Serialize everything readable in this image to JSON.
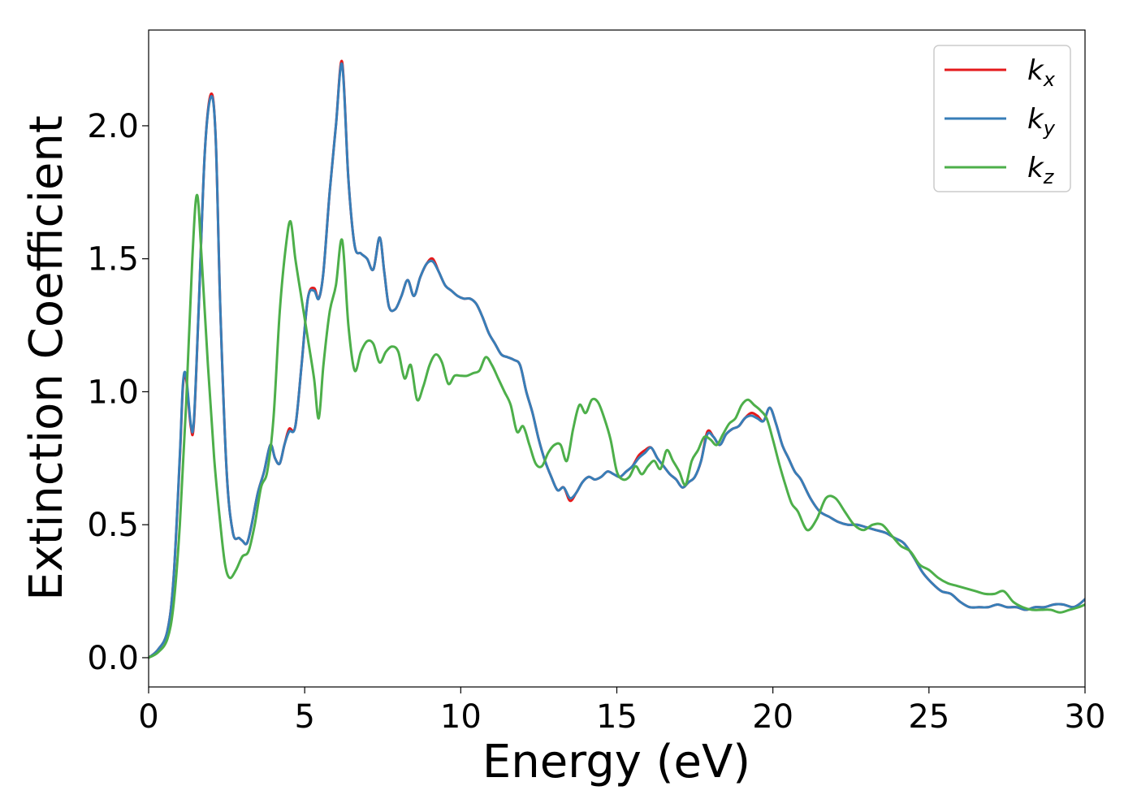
{
  "chart_data": {
    "type": "line",
    "xlabel": "Energy (eV)",
    "ylabel": "Extinction Coefficient",
    "xlim": [
      0,
      30
    ],
    "ylim": [
      -0.11,
      2.36
    ],
    "xticks": [
      0,
      5,
      10,
      15,
      20,
      25,
      30
    ],
    "xtick_labels": [
      "0",
      "5",
      "10",
      "15",
      "20",
      "25",
      "30"
    ],
    "yticks": [
      0.0,
      0.5,
      1.0,
      1.5,
      2.0
    ],
    "ytick_labels": [
      "0.0",
      "0.5",
      "1.0",
      "1.5",
      "2.0"
    ],
    "grid": false,
    "legend": {
      "placement": "top-right",
      "entries": [
        {
          "base": "k",
          "sub": "x"
        },
        {
          "base": "k",
          "sub": "y"
        },
        {
          "base": "k",
          "sub": "z"
        }
      ]
    },
    "series": [
      {
        "name": "kx",
        "color": "#e41a1c",
        "x": [
          0,
          0.3,
          0.6,
          0.8,
          1.0,
          1.1,
          1.2,
          1.35,
          1.45,
          1.6,
          1.8,
          2.0,
          2.15,
          2.3,
          2.5,
          2.7,
          2.9,
          3.0,
          3.15,
          3.3,
          3.5,
          3.7,
          3.9,
          4.05,
          4.2,
          4.35,
          4.5,
          4.7,
          4.9,
          5.1,
          5.3,
          5.45,
          5.6,
          5.8,
          6.0,
          6.2,
          6.4,
          6.6,
          6.8,
          7.0,
          7.2,
          7.4,
          7.55,
          7.7,
          7.9,
          8.1,
          8.3,
          8.5,
          8.7,
          8.9,
          9.1,
          9.3,
          9.5,
          9.7,
          9.9,
          10.1,
          10.3,
          10.5,
          10.7,
          10.9,
          11.1,
          11.3,
          11.5,
          11.7,
          11.9,
          12.1,
          12.3,
          12.5,
          12.7,
          12.9,
          13.1,
          13.3,
          13.5,
          13.7,
          13.9,
          14.1,
          14.3,
          14.5,
          14.7,
          14.9,
          15.1,
          15.3,
          15.5,
          15.7,
          15.9,
          16.1,
          16.3,
          16.5,
          16.7,
          16.9,
          17.1,
          17.3,
          17.5,
          17.7,
          17.9,
          18.1,
          18.3,
          18.5,
          18.7,
          18.9,
          19.1,
          19.3,
          19.5,
          19.7,
          19.9,
          20.1,
          20.3,
          20.5,
          20.7,
          20.9,
          21.2,
          21.5,
          21.8,
          22.1,
          22.4,
          22.7,
          23.0,
          23.3,
          23.6,
          23.9,
          24.2,
          24.5,
          24.8,
          25.1,
          25.4,
          25.7,
          26.0,
          26.3,
          26.6,
          26.9,
          27.2,
          27.5,
          27.8,
          28.1,
          28.4,
          28.7,
          29.0,
          29.3,
          29.6,
          29.8,
          30.0
        ],
        "y": [
          0.0,
          0.03,
          0.1,
          0.3,
          0.75,
          1.02,
          1.05,
          0.87,
          0.88,
          1.3,
          1.9,
          2.12,
          1.95,
          1.3,
          0.7,
          0.47,
          0.45,
          0.44,
          0.43,
          0.5,
          0.62,
          0.7,
          0.8,
          0.75,
          0.73,
          0.8,
          0.86,
          0.87,
          1.1,
          1.35,
          1.39,
          1.35,
          1.45,
          1.75,
          2.0,
          2.24,
          1.8,
          1.55,
          1.52,
          1.5,
          1.46,
          1.58,
          1.45,
          1.32,
          1.31,
          1.36,
          1.42,
          1.36,
          1.43,
          1.48,
          1.5,
          1.45,
          1.4,
          1.38,
          1.36,
          1.35,
          1.35,
          1.33,
          1.28,
          1.22,
          1.18,
          1.14,
          1.13,
          1.12,
          1.1,
          1.0,
          0.92,
          0.82,
          0.74,
          0.68,
          0.63,
          0.64,
          0.59,
          0.62,
          0.66,
          0.68,
          0.67,
          0.68,
          0.7,
          0.69,
          0.68,
          0.7,
          0.72,
          0.76,
          0.78,
          0.79,
          0.75,
          0.72,
          0.69,
          0.67,
          0.64,
          0.66,
          0.68,
          0.74,
          0.85,
          0.83,
          0.8,
          0.84,
          0.86,
          0.87,
          0.9,
          0.92,
          0.91,
          0.89,
          0.94,
          0.88,
          0.8,
          0.75,
          0.7,
          0.67,
          0.6,
          0.55,
          0.53,
          0.51,
          0.5,
          0.5,
          0.49,
          0.48,
          0.47,
          0.45,
          0.43,
          0.38,
          0.32,
          0.28,
          0.25,
          0.24,
          0.21,
          0.19,
          0.19,
          0.19,
          0.2,
          0.19,
          0.19,
          0.18,
          0.19,
          0.19,
          0.2,
          0.2,
          0.19,
          0.2,
          0.22
        ]
      },
      {
        "name": "ky",
        "color": "#377eb8",
        "x": [
          0,
          0.3,
          0.6,
          0.8,
          1.0,
          1.1,
          1.2,
          1.35,
          1.45,
          1.6,
          1.8,
          2.0,
          2.15,
          2.3,
          2.5,
          2.7,
          2.9,
          3.0,
          3.15,
          3.3,
          3.5,
          3.7,
          3.9,
          4.05,
          4.2,
          4.35,
          4.5,
          4.7,
          4.9,
          5.1,
          5.3,
          5.45,
          5.6,
          5.8,
          6.0,
          6.2,
          6.4,
          6.6,
          6.8,
          7.0,
          7.2,
          7.4,
          7.55,
          7.7,
          7.9,
          8.1,
          8.3,
          8.5,
          8.7,
          8.9,
          9.1,
          9.3,
          9.5,
          9.7,
          9.9,
          10.1,
          10.3,
          10.5,
          10.7,
          10.9,
          11.1,
          11.3,
          11.5,
          11.7,
          11.9,
          12.1,
          12.3,
          12.5,
          12.7,
          12.9,
          13.1,
          13.3,
          13.5,
          13.7,
          13.9,
          14.1,
          14.3,
          14.5,
          14.7,
          14.9,
          15.1,
          15.3,
          15.5,
          15.7,
          15.9,
          16.1,
          16.3,
          16.5,
          16.7,
          16.9,
          17.1,
          17.3,
          17.5,
          17.7,
          17.9,
          18.1,
          18.3,
          18.5,
          18.7,
          18.9,
          19.1,
          19.3,
          19.5,
          19.7,
          19.9,
          20.1,
          20.3,
          20.5,
          20.7,
          20.9,
          21.2,
          21.5,
          21.8,
          22.1,
          22.4,
          22.7,
          23.0,
          23.3,
          23.6,
          23.9,
          24.2,
          24.5,
          24.8,
          25.1,
          25.4,
          25.7,
          26.0,
          26.3,
          26.6,
          26.9,
          27.2,
          27.5,
          27.8,
          28.1,
          28.4,
          28.7,
          29.0,
          29.3,
          29.6,
          29.8,
          30.0
        ],
        "y": [
          0.0,
          0.03,
          0.1,
          0.3,
          0.76,
          1.03,
          1.06,
          0.88,
          0.89,
          1.3,
          1.9,
          2.11,
          1.95,
          1.3,
          0.7,
          0.47,
          0.45,
          0.44,
          0.43,
          0.5,
          0.62,
          0.7,
          0.8,
          0.75,
          0.73,
          0.8,
          0.85,
          0.87,
          1.1,
          1.35,
          1.38,
          1.35,
          1.45,
          1.75,
          2.0,
          2.23,
          1.8,
          1.55,
          1.52,
          1.5,
          1.46,
          1.58,
          1.45,
          1.32,
          1.31,
          1.36,
          1.42,
          1.36,
          1.43,
          1.48,
          1.49,
          1.45,
          1.4,
          1.38,
          1.36,
          1.35,
          1.35,
          1.33,
          1.28,
          1.22,
          1.18,
          1.14,
          1.13,
          1.12,
          1.1,
          1.0,
          0.92,
          0.82,
          0.74,
          0.68,
          0.63,
          0.64,
          0.6,
          0.62,
          0.66,
          0.68,
          0.67,
          0.68,
          0.7,
          0.69,
          0.68,
          0.7,
          0.72,
          0.75,
          0.77,
          0.79,
          0.75,
          0.72,
          0.69,
          0.67,
          0.64,
          0.66,
          0.68,
          0.74,
          0.84,
          0.83,
          0.8,
          0.84,
          0.86,
          0.87,
          0.9,
          0.91,
          0.9,
          0.89,
          0.94,
          0.88,
          0.8,
          0.75,
          0.7,
          0.67,
          0.6,
          0.55,
          0.53,
          0.51,
          0.5,
          0.5,
          0.49,
          0.48,
          0.47,
          0.45,
          0.43,
          0.38,
          0.32,
          0.28,
          0.25,
          0.24,
          0.21,
          0.19,
          0.19,
          0.19,
          0.2,
          0.19,
          0.19,
          0.18,
          0.19,
          0.19,
          0.2,
          0.2,
          0.19,
          0.2,
          0.22
        ]
      },
      {
        "name": "kz",
        "color": "#4daf4a",
        "x": [
          0,
          0.3,
          0.6,
          0.8,
          1.0,
          1.2,
          1.4,
          1.55,
          1.7,
          1.9,
          2.1,
          2.3,
          2.45,
          2.6,
          2.8,
          3.0,
          3.2,
          3.4,
          3.6,
          3.8,
          4.0,
          4.2,
          4.4,
          4.55,
          4.7,
          4.9,
          5.1,
          5.3,
          5.45,
          5.6,
          5.8,
          6.0,
          6.2,
          6.4,
          6.6,
          6.8,
          7.0,
          7.2,
          7.4,
          7.6,
          7.8,
          8.0,
          8.2,
          8.4,
          8.6,
          8.8,
          9.0,
          9.2,
          9.4,
          9.6,
          9.8,
          10.0,
          10.2,
          10.4,
          10.6,
          10.8,
          11.0,
          11.2,
          11.4,
          11.6,
          11.8,
          12.0,
          12.2,
          12.4,
          12.6,
          12.8,
          13.0,
          13.2,
          13.4,
          13.6,
          13.8,
          14.0,
          14.2,
          14.4,
          14.6,
          14.8,
          15.0,
          15.2,
          15.4,
          15.6,
          15.8,
          16.0,
          16.2,
          16.4,
          16.6,
          16.8,
          17.0,
          17.2,
          17.4,
          17.6,
          17.8,
          18.0,
          18.2,
          18.4,
          18.6,
          18.8,
          19.0,
          19.2,
          19.4,
          19.6,
          19.8,
          20.0,
          20.2,
          20.4,
          20.6,
          20.8,
          21.1,
          21.4,
          21.7,
          22.0,
          22.3,
          22.6,
          22.9,
          23.2,
          23.5,
          23.8,
          24.1,
          24.4,
          24.7,
          25.0,
          25.3,
          25.6,
          25.9,
          26.2,
          26.5,
          26.8,
          27.1,
          27.4,
          27.7,
          28.0,
          28.3,
          28.6,
          28.9,
          29.2,
          29.5,
          29.8,
          30.0
        ],
        "y": [
          0.0,
          0.02,
          0.07,
          0.2,
          0.5,
          0.95,
          1.5,
          1.74,
          1.5,
          1.1,
          0.75,
          0.5,
          0.35,
          0.3,
          0.33,
          0.38,
          0.4,
          0.5,
          0.64,
          0.7,
          0.9,
          1.3,
          1.55,
          1.64,
          1.5,
          1.35,
          1.2,
          1.05,
          0.9,
          1.1,
          1.3,
          1.4,
          1.57,
          1.25,
          1.08,
          1.15,
          1.19,
          1.18,
          1.11,
          1.15,
          1.17,
          1.15,
          1.05,
          1.1,
          0.97,
          1.02,
          1.1,
          1.14,
          1.11,
          1.03,
          1.06,
          1.06,
          1.06,
          1.07,
          1.08,
          1.13,
          1.1,
          1.05,
          1.0,
          0.95,
          0.85,
          0.87,
          0.8,
          0.73,
          0.72,
          0.77,
          0.8,
          0.8,
          0.74,
          0.86,
          0.95,
          0.92,
          0.97,
          0.96,
          0.9,
          0.82,
          0.7,
          0.67,
          0.68,
          0.72,
          0.69,
          0.72,
          0.74,
          0.71,
          0.78,
          0.74,
          0.7,
          0.65,
          0.74,
          0.78,
          0.83,
          0.82,
          0.8,
          0.84,
          0.88,
          0.9,
          0.95,
          0.97,
          0.95,
          0.93,
          0.9,
          0.82,
          0.73,
          0.65,
          0.58,
          0.55,
          0.48,
          0.52,
          0.6,
          0.6,
          0.55,
          0.5,
          0.48,
          0.5,
          0.5,
          0.46,
          0.42,
          0.4,
          0.35,
          0.33,
          0.3,
          0.28,
          0.27,
          0.26,
          0.25,
          0.24,
          0.24,
          0.25,
          0.21,
          0.19,
          0.18,
          0.18,
          0.18,
          0.17,
          0.18,
          0.19,
          0.2
        ]
      }
    ]
  }
}
